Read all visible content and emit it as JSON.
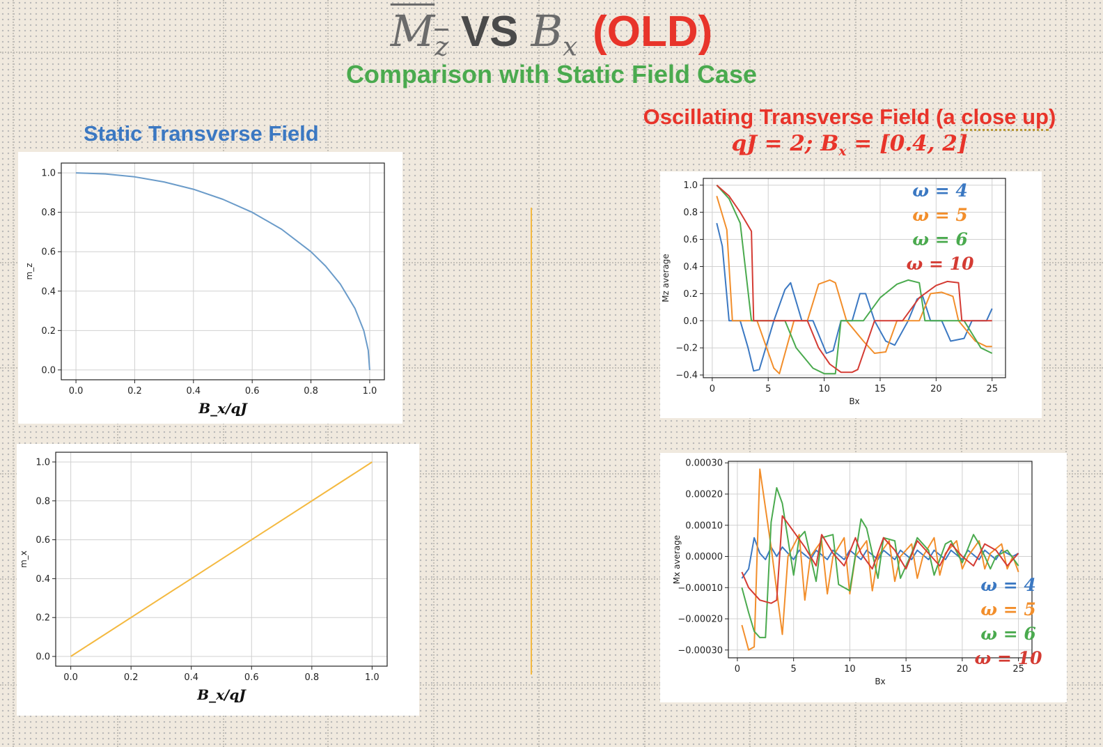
{
  "slide": {
    "title": {
      "mz": "M",
      "mz_sub": "z",
      "vs": "VS",
      "bx": "B",
      "bx_sub": "x",
      "old": "(OLD)"
    },
    "subtitle": "Comparison with Static Field Case",
    "static_heading": "Static Transverse Field",
    "osc_heading_pre": "Oscillating Transverse Field (a ",
    "osc_heading_cu": "close up",
    "osc_heading_post": ")",
    "osc_params": {
      "qj": "qJ = 2; B",
      "sub": "x",
      "rest": " = [0.4, 2]"
    },
    "colors": {
      "blue": "#3b78c2",
      "orange": "#f4b940",
      "green": "#4aaa4e",
      "red": "#e8342a"
    }
  },
  "chart_data": [
    {
      "type": "line",
      "id": "static_mz",
      "xlabel": "B_x/qJ",
      "ylabel": "m_z",
      "xlim": [
        -0.05,
        1.05
      ],
      "ylim": [
        -0.05,
        1.05
      ],
      "xticks": [
        0.0,
        0.2,
        0.4,
        0.6,
        0.8,
        1.0
      ],
      "yticks": [
        0.0,
        0.2,
        0.4,
        0.6,
        0.8,
        1.0
      ],
      "grid": true,
      "series": [
        {
          "color": "#6a9bc9",
          "x": [
            0,
            0.1,
            0.2,
            0.3,
            0.4,
            0.5,
            0.6,
            0.7,
            0.8,
            0.85,
            0.9,
            0.95,
            0.98,
            0.995,
            1.0
          ],
          "y": [
            1.0,
            0.995,
            0.98,
            0.954,
            0.917,
            0.866,
            0.8,
            0.714,
            0.6,
            0.527,
            0.436,
            0.312,
            0.199,
            0.1,
            0.0
          ]
        }
      ]
    },
    {
      "type": "line",
      "id": "static_mx",
      "xlabel": "B_x/qJ",
      "ylabel": "m_x",
      "xlim": [
        -0.05,
        1.05
      ],
      "ylim": [
        -0.05,
        1.05
      ],
      "xticks": [
        0.0,
        0.2,
        0.4,
        0.6,
        0.8,
        1.0
      ],
      "yticks": [
        0.0,
        0.2,
        0.4,
        0.6,
        0.8,
        1.0
      ],
      "grid": true,
      "series": [
        {
          "color": "#f4b940",
          "x": [
            0,
            1.0
          ],
          "y": [
            0,
            1.0
          ]
        }
      ]
    },
    {
      "type": "line",
      "id": "osc_mz",
      "xlabel": "Bx",
      "ylabel": "Mz average",
      "xlim": [
        -0.8,
        26.2
      ],
      "ylim": [
        -0.42,
        1.05
      ],
      "xticks": [
        0,
        5,
        10,
        15,
        20,
        25
      ],
      "yticks": [
        -0.4,
        -0.2,
        0.0,
        0.2,
        0.4,
        0.6,
        0.8,
        1.0
      ],
      "grid": true,
      "legend": "top-right",
      "series": [
        {
          "name": "ω = 4",
          "color": "#3b78c2",
          "x": [
            0.4,
            0.9,
            1.5,
            2.5,
            3.2,
            3.7,
            4.2,
            5.5,
            6.5,
            7.0,
            8.0,
            9.0,
            10.2,
            10.8,
            11.5,
            12.5,
            13.2,
            13.7,
            14.5,
            15.5,
            16.3,
            17.5,
            18.3,
            18.8,
            19.5,
            20.5,
            21.3,
            22.5,
            23.2,
            23.7,
            24.5,
            25.0
          ],
          "y": [
            0.72,
            0.55,
            0.0,
            0.0,
            -0.2,
            -0.37,
            -0.36,
            0.0,
            0.23,
            0.28,
            0.0,
            0.0,
            -0.24,
            -0.22,
            0.0,
            0.0,
            0.2,
            0.2,
            0.0,
            -0.15,
            -0.18,
            0.0,
            0.16,
            0.18,
            0.0,
            0.0,
            -0.15,
            -0.13,
            0.0,
            0.0,
            0.0,
            0.09
          ]
        },
        {
          "name": "ω = 5",
          "color": "#f28e2b",
          "x": [
            0.4,
            1.3,
            1.8,
            3.5,
            4.0,
            5.5,
            6.0,
            7.3,
            8.5,
            9.5,
            10.5,
            11.0,
            12.0,
            13.5,
            14.5,
            15.5,
            16.5,
            17.0,
            18.5,
            19.5,
            20.5,
            21.5,
            22.0,
            23.5,
            24.5,
            25.0
          ],
          "y": [
            0.92,
            0.67,
            0.0,
            0.0,
            0.0,
            -0.35,
            -0.39,
            0.0,
            0.0,
            0.27,
            0.3,
            0.28,
            0.0,
            -0.15,
            -0.24,
            -0.23,
            0.0,
            0.0,
            0.0,
            0.2,
            0.21,
            0.18,
            0.0,
            -0.15,
            -0.19,
            -0.19
          ]
        },
        {
          "name": "ω = 6",
          "color": "#4aaa4e",
          "x": [
            0.4,
            1.5,
            2.5,
            3.5,
            4.0,
            6.5,
            7.5,
            9.0,
            10.0,
            11.0,
            11.5,
            13.5,
            15.0,
            16.5,
            17.5,
            18.5,
            19.0,
            22.5,
            24.0,
            25.0
          ],
          "y": [
            1.0,
            0.9,
            0.72,
            0.0,
            0.0,
            0.0,
            -0.2,
            -0.35,
            -0.39,
            -0.39,
            0.0,
            0.0,
            0.17,
            0.27,
            0.3,
            0.28,
            0.0,
            0.0,
            -0.2,
            -0.24
          ]
        },
        {
          "name": "ω = 10",
          "color": "#d43b33",
          "x": [
            0.4,
            1.5,
            2.5,
            3.5,
            3.7,
            8.5,
            9.5,
            10.5,
            11.5,
            12.5,
            13.0,
            14.5,
            17.0,
            18.5,
            20.0,
            21.0,
            22.0,
            22.3,
            25.0
          ],
          "y": [
            1.0,
            0.92,
            0.8,
            0.66,
            0.0,
            0.0,
            -0.2,
            -0.32,
            -0.38,
            -0.38,
            -0.36,
            0.0,
            0.0,
            0.17,
            0.26,
            0.29,
            0.28,
            0.0,
            0.0
          ]
        }
      ]
    },
    {
      "type": "line",
      "id": "osc_mx",
      "xlabel": "Bx",
      "ylabel": "Mx average",
      "xlim": [
        -0.8,
        26.2
      ],
      "ylim": [
        -0.000325,
        0.000305
      ],
      "xticks": [
        0,
        5,
        10,
        15,
        20,
        25
      ],
      "yticks": [
        -0.0003,
        -0.0002,
        -0.0001,
        0.0,
        0.0001,
        0.0002,
        0.0003
      ],
      "grid": true,
      "legend": "bottom-right",
      "series": [
        {
          "name": "ω = 4",
          "color": "#3b78c2",
          "x": [
            0.4,
            1.0,
            1.5,
            2.0,
            2.5,
            3.0,
            3.5,
            4.0,
            5.0,
            5.5,
            6.5,
            7.0,
            8.0,
            8.5,
            9.5,
            10.0,
            11.0,
            11.5,
            12.5,
            13.0,
            14.0,
            14.5,
            15.5,
            16.0,
            17.0,
            17.5,
            18.5,
            19.0,
            20.0,
            20.5,
            21.5,
            22.0,
            23.0,
            23.5,
            24.5,
            25.0
          ],
          "y": [
            -7e-05,
            -4e-05,
            6e-05,
            1e-05,
            -1e-05,
            3e-05,
            0.0,
            3e-05,
            -1e-05,
            2e-05,
            -1e-05,
            2e-05,
            -1e-05,
            2e-05,
            -1e-05,
            2e-05,
            -1e-05,
            2e-05,
            -1e-05,
            2e-05,
            -1e-05,
            2e-05,
            -1e-05,
            2e-05,
            -1e-05,
            2e-05,
            -1e-05,
            2e-05,
            -1e-05,
            2e-05,
            -1e-05,
            2e-05,
            -1e-05,
            2e-05,
            0.0,
            1e-05
          ]
        },
        {
          "name": "ω = 5",
          "color": "#f28e2b",
          "x": [
            0.4,
            1.0,
            1.5,
            2.0,
            3.0,
            4.0,
            4.5,
            5.5,
            6.0,
            6.5,
            7.5,
            8.0,
            8.5,
            9.5,
            10.0,
            10.5,
            11.5,
            12.0,
            12.5,
            13.5,
            14.0,
            14.5,
            15.5,
            16.0,
            16.5,
            17.5,
            18.0,
            18.5,
            19.5,
            20.0,
            20.5,
            21.5,
            22.0,
            22.5,
            23.5,
            24.0,
            24.5,
            25.0
          ],
          "y": [
            -0.00022,
            -0.0003,
            -0.00029,
            0.00028,
            3e-05,
            -0.00025,
            0.0,
            7e-05,
            -0.00014,
            0.0,
            5e-05,
            -0.00012,
            0.0,
            6e-05,
            -0.00012,
            0.0,
            5e-05,
            -0.00011,
            0.0,
            5e-05,
            -8e-05,
            0.0,
            4e-05,
            -7e-05,
            0.0,
            6e-05,
            -6e-05,
            1e-05,
            5e-05,
            -4e-05,
            0.0,
            5e-05,
            -4e-05,
            1e-05,
            4e-05,
            -4e-05,
            0.0,
            -5e-05
          ]
        },
        {
          "name": "ω = 6",
          "color": "#4aaa4e",
          "x": [
            0.4,
            1.0,
            1.5,
            2.0,
            2.5,
            3.0,
            3.5,
            4.0,
            5.0,
            5.5,
            6.0,
            7.0,
            7.5,
            8.5,
            9.0,
            10.0,
            11.0,
            11.5,
            12.5,
            13.0,
            14.0,
            14.5,
            15.5,
            16.0,
            17.0,
            17.5,
            18.5,
            19.0,
            20.0,
            21.0,
            21.5,
            22.5,
            23.0,
            24.0,
            25.0
          ],
          "y": [
            -0.0001,
            -0.00018,
            -0.00024,
            -0.00026,
            -0.00026,
            0.00011,
            0.00022,
            0.00017,
            -6e-05,
            6e-05,
            8e-05,
            -8e-05,
            6e-05,
            7e-05,
            -9e-05,
            -0.00011,
            0.00012,
            9e-05,
            -7e-05,
            6e-05,
            5e-05,
            -7e-05,
            1e-05,
            6e-05,
            2e-05,
            -6e-05,
            4e-05,
            5e-05,
            -2e-05,
            7e-05,
            4e-05,
            -4e-05,
            0.0,
            2e-05,
            -3e-05
          ]
        },
        {
          "name": "ω = 10",
          "color": "#d43b33",
          "x": [
            0.4,
            1.0,
            2.0,
            3.0,
            3.5,
            4.0,
            5.0,
            6.0,
            7.0,
            7.5,
            8.5,
            9.5,
            10.5,
            11.0,
            12.0,
            13.0,
            14.0,
            15.0,
            16.0,
            17.0,
            18.0,
            19.0,
            20.0,
            21.0,
            22.0,
            23.0,
            24.0,
            25.0
          ],
          "y": [
            -5e-05,
            -0.0001,
            -0.00014,
            -0.00015,
            -0.00014,
            0.00013,
            8e-05,
            3e-05,
            -3e-05,
            7e-05,
            1e-05,
            -3e-05,
            6e-05,
            1e-05,
            -4e-05,
            6e-05,
            2e-05,
            -4e-05,
            5e-05,
            1e-05,
            -3e-05,
            4e-05,
            0.0,
            -3e-05,
            4e-05,
            2e-05,
            -3e-05,
            1e-05
          ]
        }
      ]
    }
  ]
}
